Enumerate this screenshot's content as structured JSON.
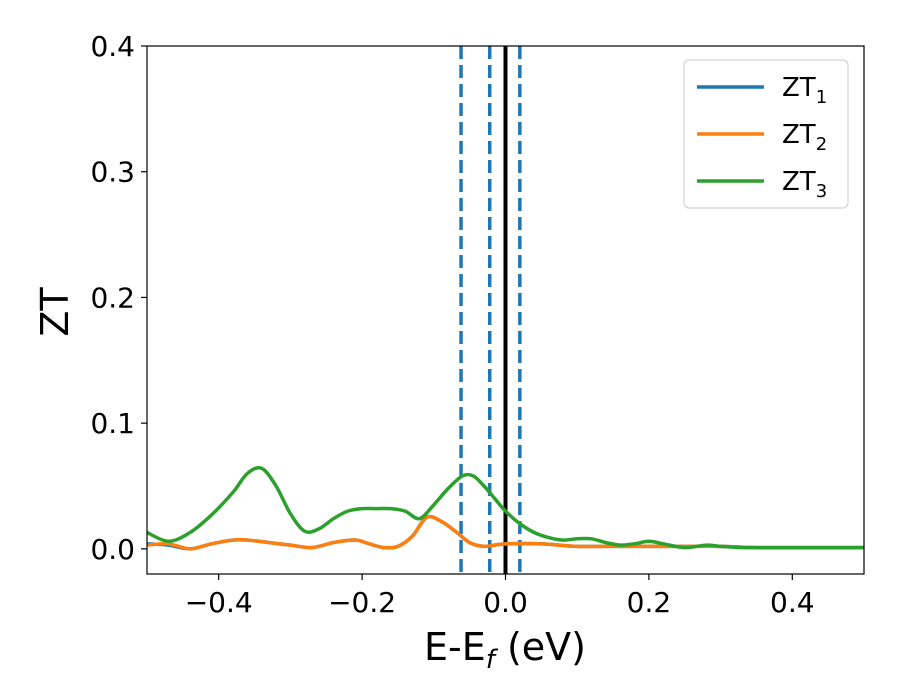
{
  "chart_data": {
    "type": "line",
    "xlabel": "E-E",
    "xlabel_sub": "f",
    "xlabel_unit": " (eV)",
    "ylabel": "ZT",
    "xlim": [
      -0.5,
      0.5
    ],
    "ylim": [
      -0.02,
      0.4
    ],
    "xticks": [
      -0.4,
      -0.2,
      0.0,
      0.2,
      0.4
    ],
    "xtick_labels": [
      "−0.4",
      "−0.2",
      "0.0",
      "0.2",
      "0.4"
    ],
    "yticks": [
      0.0,
      0.1,
      0.2,
      0.3,
      0.4
    ],
    "ytick_labels": [
      "0.0",
      "0.1",
      "0.2",
      "0.3",
      "0.4"
    ],
    "legend_position": "top-right",
    "vertical_lines": [
      {
        "x": -0.062,
        "style": "dashed",
        "color": "#1f77b4"
      },
      {
        "x": -0.022,
        "style": "dashed",
        "color": "#1f77b4"
      },
      {
        "x": 0.02,
        "style": "dashed",
        "color": "#1f77b4"
      },
      {
        "x": 0.0,
        "style": "solid",
        "color": "#000000"
      }
    ],
    "series": [
      {
        "name": "ZT",
        "name_sub": "1",
        "color": "#1f77b4",
        "x": [
          -0.5,
          -0.47,
          -0.44,
          -0.41,
          -0.38,
          -0.36,
          -0.33,
          -0.3,
          -0.27,
          -0.24,
          -0.21,
          -0.19,
          -0.17,
          -0.15,
          -0.13,
          -0.11,
          -0.09,
          -0.07,
          -0.05,
          -0.03,
          0.0,
          0.05,
          0.1,
          0.15,
          0.2,
          0.25,
          0.3,
          0.35,
          0.4,
          0.45,
          0.5
        ],
        "values": [
          0.004,
          0.003,
          0.0,
          0.004,
          0.007,
          0.007,
          0.005,
          0.003,
          0.001,
          0.005,
          0.007,
          0.004,
          0.001,
          0.002,
          0.01,
          0.025,
          0.022,
          0.014,
          0.005,
          0.002,
          0.004,
          0.004,
          0.002,
          0.002,
          0.002,
          0.002,
          0.002,
          0.001,
          0.001,
          0.001,
          0.001
        ]
      },
      {
        "name": "ZT",
        "name_sub": "2",
        "color": "#ff7f0e",
        "x": [
          -0.5,
          -0.47,
          -0.44,
          -0.41,
          -0.38,
          -0.36,
          -0.33,
          -0.3,
          -0.27,
          -0.24,
          -0.21,
          -0.19,
          -0.17,
          -0.15,
          -0.13,
          -0.11,
          -0.09,
          -0.07,
          -0.05,
          -0.03,
          0.0,
          0.05,
          0.1,
          0.15,
          0.2,
          0.25,
          0.3,
          0.35,
          0.4,
          0.45,
          0.5
        ],
        "values": [
          0.003,
          0.004,
          0.0,
          0.004,
          0.007,
          0.007,
          0.005,
          0.003,
          0.001,
          0.005,
          0.007,
          0.004,
          0.001,
          0.002,
          0.01,
          0.025,
          0.022,
          0.014,
          0.005,
          0.002,
          0.004,
          0.004,
          0.002,
          0.002,
          0.002,
          0.002,
          0.002,
          0.001,
          0.001,
          0.001,
          0.001
        ]
      },
      {
        "name": "ZT",
        "name_sub": "3",
        "color": "#2ca02c",
        "x": [
          -0.5,
          -0.47,
          -0.44,
          -0.41,
          -0.38,
          -0.36,
          -0.34,
          -0.32,
          -0.3,
          -0.28,
          -0.26,
          -0.24,
          -0.22,
          -0.2,
          -0.18,
          -0.16,
          -0.14,
          -0.12,
          -0.1,
          -0.08,
          -0.06,
          -0.045,
          -0.03,
          -0.015,
          0.0,
          0.02,
          0.04,
          0.06,
          0.08,
          0.1,
          0.12,
          0.14,
          0.16,
          0.18,
          0.2,
          0.22,
          0.25,
          0.28,
          0.3,
          0.33,
          0.36,
          0.4,
          0.45,
          0.5
        ],
        "values": [
          0.013,
          0.006,
          0.013,
          0.027,
          0.045,
          0.06,
          0.064,
          0.05,
          0.028,
          0.014,
          0.016,
          0.024,
          0.03,
          0.032,
          0.032,
          0.032,
          0.03,
          0.024,
          0.035,
          0.048,
          0.058,
          0.058,
          0.05,
          0.04,
          0.03,
          0.02,
          0.013,
          0.009,
          0.007,
          0.008,
          0.008,
          0.005,
          0.003,
          0.004,
          0.006,
          0.004,
          0.001,
          0.003,
          0.002,
          0.001,
          0.001,
          0.001,
          0.001,
          0.001
        ]
      }
    ]
  }
}
